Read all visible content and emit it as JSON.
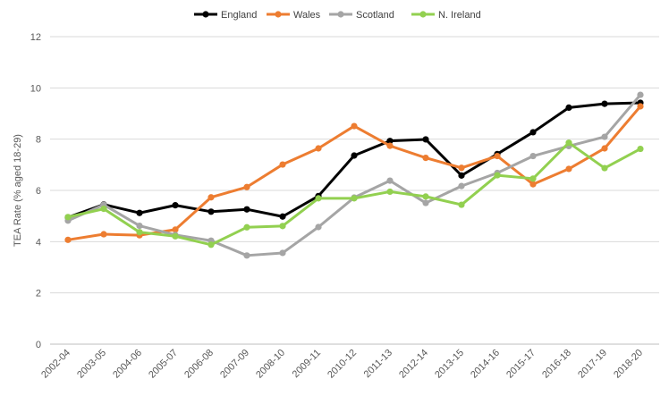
{
  "chart_data": {
    "type": "line",
    "ylabel": "TEA Rate (% aged 18-29)",
    "xlabel": "",
    "ylim": [
      0,
      12
    ],
    "yticks": [
      0,
      2,
      4,
      6,
      8,
      10,
      12
    ],
    "grid": "horizontal",
    "legend_position": "top",
    "categories": [
      "2002-04",
      "2003-05",
      "2004-06",
      "2005-07",
      "2006-08",
      "2007-09",
      "2008-10",
      "2009-11",
      "2010-12",
      "2011-13",
      "2012-14",
      "2013-15",
      "2014-16",
      "2015-17",
      "2016-18",
      "2017-19",
      "2018-20"
    ],
    "series": [
      {
        "name": "England",
        "color": "#000000",
        "values": [
          4.95,
          5.45,
          5.12,
          5.42,
          5.17,
          5.26,
          4.98,
          5.78,
          7.36,
          7.93,
          7.99,
          6.58,
          7.42,
          8.27,
          9.23,
          9.38,
          9.42
        ]
      },
      {
        "name": "Wales",
        "color": "#ed7d31",
        "values": [
          4.07,
          4.29,
          4.25,
          4.47,
          5.73,
          6.13,
          7.01,
          7.64,
          8.51,
          7.74,
          7.27,
          6.88,
          7.34,
          6.24,
          6.84,
          7.64,
          9.28
        ]
      },
      {
        "name": "Scotland",
        "color": "#a5a5a5",
        "values": [
          4.82,
          5.44,
          4.62,
          4.26,
          4.04,
          3.46,
          3.56,
          4.57,
          5.72,
          6.38,
          5.51,
          6.17,
          6.68,
          7.34,
          7.73,
          8.09,
          9.73
        ]
      },
      {
        "name": "N. Ireland",
        "color": "#92d050",
        "values": [
          4.96,
          5.28,
          4.37,
          4.21,
          3.88,
          4.56,
          4.61,
          5.69,
          5.69,
          5.95,
          5.76,
          5.44,
          6.59,
          6.46,
          7.86,
          6.87,
          7.62
        ]
      }
    ]
  }
}
